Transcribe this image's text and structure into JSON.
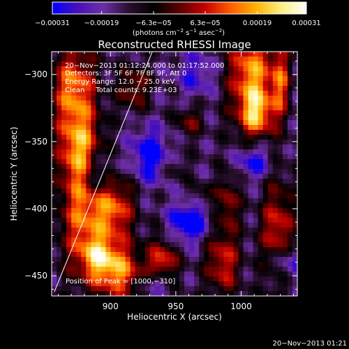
{
  "chart_data": {
    "type": "heatmap",
    "title": "Reconstructed RHESSI Image",
    "xlabel": "Heliocentric X (arcsec)",
    "ylabel": "Heliocentric Y (arcsec)",
    "xlim": [
      855,
      1043
    ],
    "ylim": [
      -465,
      -283
    ],
    "x_ticks": [
      900,
      950,
      1000
    ],
    "y_ticks": [
      -300,
      -350,
      -400,
      -450
    ],
    "x_tick_labels": [
      "900",
      "950",
      "1000"
    ],
    "y_tick_labels": [
      "−300",
      "−350",
      "−400",
      "−450"
    ],
    "colorbar": {
      "range": [
        -0.00031,
        0.00031
      ],
      "ticks": [
        -0.00031,
        -0.00019,
        -6.3e-05,
        6.3e-05,
        0.00019,
        0.00031
      ],
      "tick_labels": [
        "−0.00031",
        "−0.00019",
        "−6.3e−05",
        "6.3e−05",
        "0.00019",
        "0.00031"
      ],
      "unit_parts": [
        "(photons cm",
        "−2",
        " s",
        "−1",
        " asec",
        "−2",
        ")"
      ],
      "colormap": [
        "#0000ff",
        "#4a10b8",
        "#6c2fa8",
        "#2a0f30",
        "#000000",
        "#5c0000",
        "#c40000",
        "#ff5a00",
        "#ffb000",
        "#ffee80",
        "#ffffff"
      ]
    },
    "info_lines": [
      "20−Nov−2013 01:12:24.000 to 01:17:52.000",
      "Detectors: 3F 5F 6F 7F 8F 9F, Att 0",
      "Energy Range: 12.0 − 25.0 keV",
      "Clean     Total counts: 9.23E+03"
    ],
    "peak_label": "Position of Peak = [1000,−310]",
    "peak": [
      1000,
      -310
    ],
    "limb_line": [
      [
        857,
        -462
      ],
      [
        932,
        -283
      ]
    ],
    "intensity_features": [
      {
        "x": 1008,
        "y": -300,
        "sx": 12,
        "sy": 26,
        "a": 1.0
      },
      {
        "x": 1012,
        "y": -330,
        "sx": 9,
        "sy": 12,
        "a": 0.75
      },
      {
        "x": 1030,
        "y": -305,
        "sx": 5,
        "sy": 20,
        "a": 0.7
      },
      {
        "x": 872,
        "y": -310,
        "sx": 12,
        "sy": 22,
        "a": 0.9
      },
      {
        "x": 876,
        "y": -355,
        "sx": 11,
        "sy": 20,
        "a": 0.85
      },
      {
        "x": 878,
        "y": -405,
        "sx": 12,
        "sy": 30,
        "a": 0.8
      },
      {
        "x": 902,
        "y": -400,
        "sx": 11,
        "sy": 18,
        "a": 0.85
      },
      {
        "x": 905,
        "y": -447,
        "sx": 14,
        "sy": 14,
        "a": 0.95
      },
      {
        "x": 890,
        "y": -435,
        "sx": 9,
        "sy": 10,
        "a": 0.6
      },
      {
        "x": 940,
        "y": -440,
        "sx": 8,
        "sy": 12,
        "a": 0.75
      },
      {
        "x": 986,
        "y": -440,
        "sx": 9,
        "sy": 18,
        "a": 0.7
      },
      {
        "x": 990,
        "y": -395,
        "sx": 6,
        "sy": 14,
        "a": 0.55
      },
      {
        "x": 1028,
        "y": -420,
        "sx": 9,
        "sy": 28,
        "a": 0.75
      },
      {
        "x": 918,
        "y": -310,
        "sx": 8,
        "sy": 12,
        "a": 0.55
      },
      {
        "x": 960,
        "y": -335,
        "sx": 7,
        "sy": 8,
        "a": 0.45
      },
      {
        "x": 950,
        "y": -370,
        "sx": 6,
        "sy": 7,
        "a": 0.25
      },
      {
        "x": 970,
        "y": -390,
        "sx": 6,
        "sy": 6,
        "a": 0.3
      },
      {
        "x": 930,
        "y": -360,
        "sx": 10,
        "sy": 14,
        "a": -0.65
      },
      {
        "x": 960,
        "y": -410,
        "sx": 10,
        "sy": 10,
        "a": -0.8
      },
      {
        "x": 890,
        "y": -375,
        "sx": 9,
        "sy": 12,
        "a": -0.55
      },
      {
        "x": 1035,
        "y": -440,
        "sx": 10,
        "sy": 10,
        "a": -0.6
      },
      {
        "x": 1010,
        "y": -365,
        "sx": 9,
        "sy": 9,
        "a": -0.55
      },
      {
        "x": 965,
        "y": -300,
        "sx": 10,
        "sy": 12,
        "a": -0.4
      },
      {
        "x": 935,
        "y": -455,
        "sx": 8,
        "sy": 6,
        "a": -0.5
      }
    ]
  },
  "footer": {
    "timestamp": "20−Nov−2013 01:21"
  }
}
